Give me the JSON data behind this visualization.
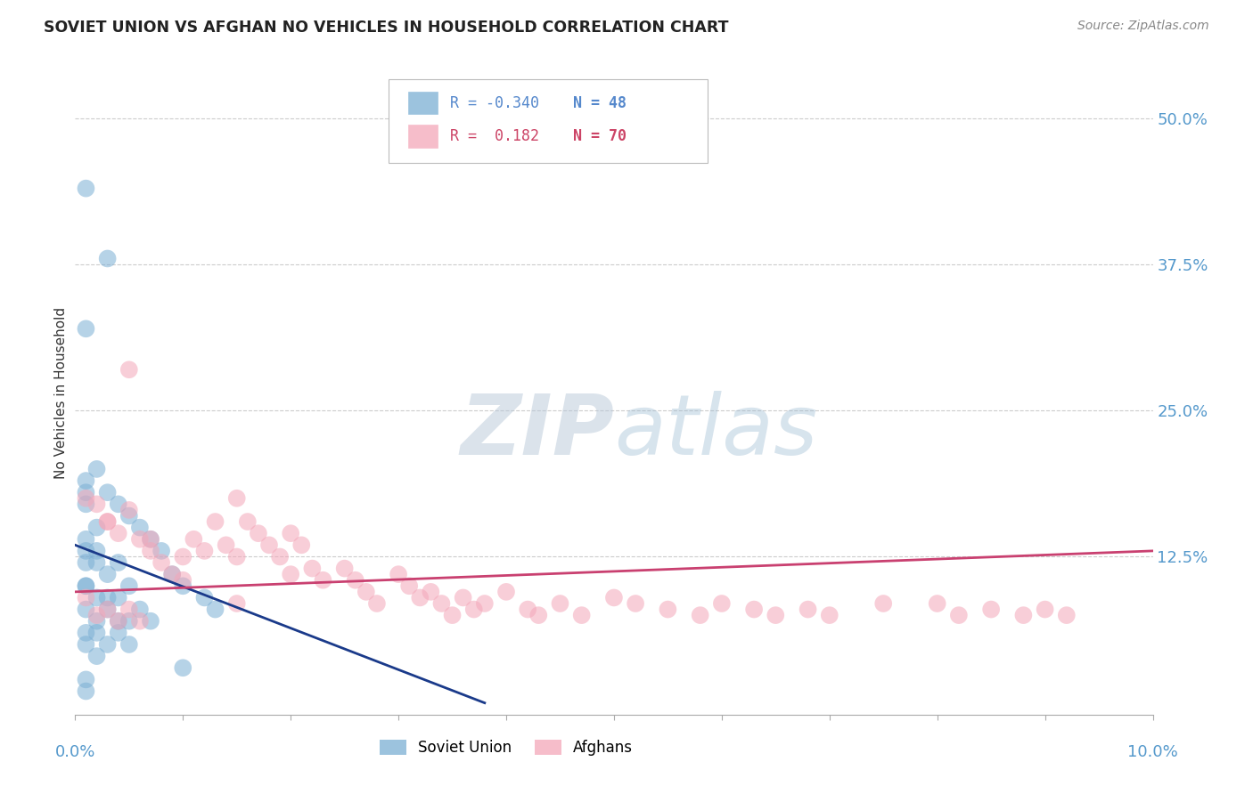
{
  "title": "SOVIET UNION VS AFGHAN NO VEHICLES IN HOUSEHOLD CORRELATION CHART",
  "source": "Source: ZipAtlas.com",
  "ylabel": "No Vehicles in Household",
  "right_yticks": [
    "50.0%",
    "37.5%",
    "25.0%",
    "12.5%"
  ],
  "right_ytick_vals": [
    0.5,
    0.375,
    0.25,
    0.125
  ],
  "xlim": [
    0.0,
    0.1
  ],
  "ylim": [
    -0.01,
    0.54
  ],
  "blue_color": "#7BAFD4",
  "pink_color": "#F4A7B9",
  "blue_line_color": "#1A3A8A",
  "pink_line_color": "#C94070",
  "grid_color": "#CCCCCC",
  "bg_color": "#FFFFFF",
  "watermark_color": "#C8D8E8",
  "blue_scatter_x": [
    0.001,
    0.001,
    0.001,
    0.001,
    0.001,
    0.001,
    0.001,
    0.001,
    0.002,
    0.002,
    0.002,
    0.002,
    0.002,
    0.002,
    0.003,
    0.003,
    0.003,
    0.003,
    0.003,
    0.004,
    0.004,
    0.004,
    0.004,
    0.005,
    0.005,
    0.005,
    0.006,
    0.006,
    0.007,
    0.007,
    0.008,
    0.009,
    0.01,
    0.01,
    0.012,
    0.013,
    0.001,
    0.001,
    0.001,
    0.002,
    0.002,
    0.003,
    0.004,
    0.005,
    0.001,
    0.001,
    0.001,
    0.001
  ],
  "blue_scatter_y": [
    0.44,
    0.19,
    0.17,
    0.12,
    0.1,
    0.08,
    0.06,
    0.02,
    0.2,
    0.15,
    0.12,
    0.09,
    0.07,
    0.04,
    0.38,
    0.18,
    0.11,
    0.08,
    0.05,
    0.17,
    0.12,
    0.09,
    0.06,
    0.16,
    0.1,
    0.07,
    0.15,
    0.08,
    0.14,
    0.07,
    0.13,
    0.11,
    0.1,
    0.03,
    0.09,
    0.08,
    0.32,
    0.13,
    0.05,
    0.13,
    0.06,
    0.09,
    0.07,
    0.05,
    0.18,
    0.14,
    0.1,
    0.01
  ],
  "pink_scatter_x": [
    0.001,
    0.001,
    0.002,
    0.002,
    0.003,
    0.003,
    0.004,
    0.004,
    0.005,
    0.005,
    0.006,
    0.006,
    0.007,
    0.008,
    0.009,
    0.01,
    0.011,
    0.012,
    0.013,
    0.014,
    0.015,
    0.015,
    0.016,
    0.017,
    0.018,
    0.019,
    0.02,
    0.021,
    0.022,
    0.023,
    0.025,
    0.026,
    0.027,
    0.028,
    0.03,
    0.031,
    0.032,
    0.033,
    0.034,
    0.035,
    0.036,
    0.037,
    0.038,
    0.04,
    0.042,
    0.043,
    0.045,
    0.047,
    0.05,
    0.052,
    0.055,
    0.058,
    0.06,
    0.063,
    0.065,
    0.068,
    0.07,
    0.075,
    0.08,
    0.082,
    0.085,
    0.088,
    0.09,
    0.092,
    0.003,
    0.005,
    0.007,
    0.01,
    0.015,
    0.02
  ],
  "pink_scatter_y": [
    0.175,
    0.09,
    0.17,
    0.075,
    0.155,
    0.08,
    0.145,
    0.07,
    0.285,
    0.08,
    0.14,
    0.07,
    0.13,
    0.12,
    0.11,
    0.105,
    0.14,
    0.13,
    0.155,
    0.135,
    0.175,
    0.085,
    0.155,
    0.145,
    0.135,
    0.125,
    0.145,
    0.135,
    0.115,
    0.105,
    0.115,
    0.105,
    0.095,
    0.085,
    0.11,
    0.1,
    0.09,
    0.095,
    0.085,
    0.075,
    0.09,
    0.08,
    0.085,
    0.095,
    0.08,
    0.075,
    0.085,
    0.075,
    0.09,
    0.085,
    0.08,
    0.075,
    0.085,
    0.08,
    0.075,
    0.08,
    0.075,
    0.085,
    0.085,
    0.075,
    0.08,
    0.075,
    0.08,
    0.075,
    0.155,
    0.165,
    0.14,
    0.125,
    0.125,
    0.11
  ]
}
